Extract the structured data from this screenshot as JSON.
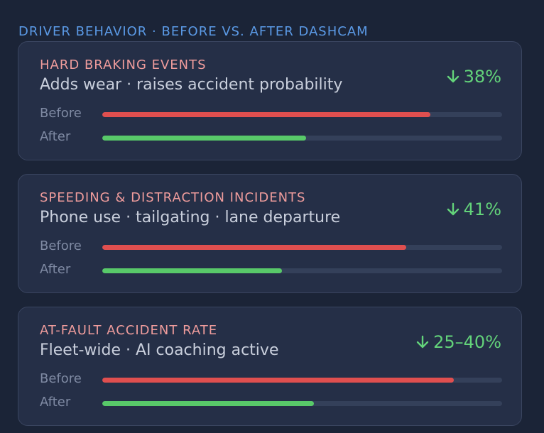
{
  "header": {
    "title": "DRIVER BEHAVIOR · BEFORE VS. AFTER DASHCAM"
  },
  "colors": {
    "background": "#1b2437",
    "card": "#252f47",
    "title_accent": "#5b9ae6",
    "card_title": "#ef9c9c",
    "before_bar": "#e04f4f",
    "after_bar": "#58c969",
    "delta": "#63d37a"
  },
  "cards": [
    {
      "title": "HARD BRAKING EVENTS",
      "subtitle": "Adds wear · raises accident probability",
      "delta": "38%",
      "delta_icon": "arrow-down-icon",
      "before_label": "Before",
      "after_label": "After",
      "before_fraction": 0.82,
      "after_fraction": 0.51
    },
    {
      "title": "SPEEDING & DISTRACTION INCIDENTS",
      "subtitle": "Phone use · tailgating · lane departure",
      "delta": "41%",
      "delta_icon": "arrow-down-icon",
      "before_label": "Before",
      "after_label": "After",
      "before_fraction": 0.76,
      "after_fraction": 0.45
    },
    {
      "title": "AT-FAULT ACCIDENT RATE",
      "subtitle": "Fleet-wide · AI coaching active",
      "delta": "25–40%",
      "delta_icon": "arrow-down-icon",
      "before_label": "Before",
      "after_label": "After",
      "before_fraction": 0.88,
      "after_fraction": 0.53
    }
  ]
}
